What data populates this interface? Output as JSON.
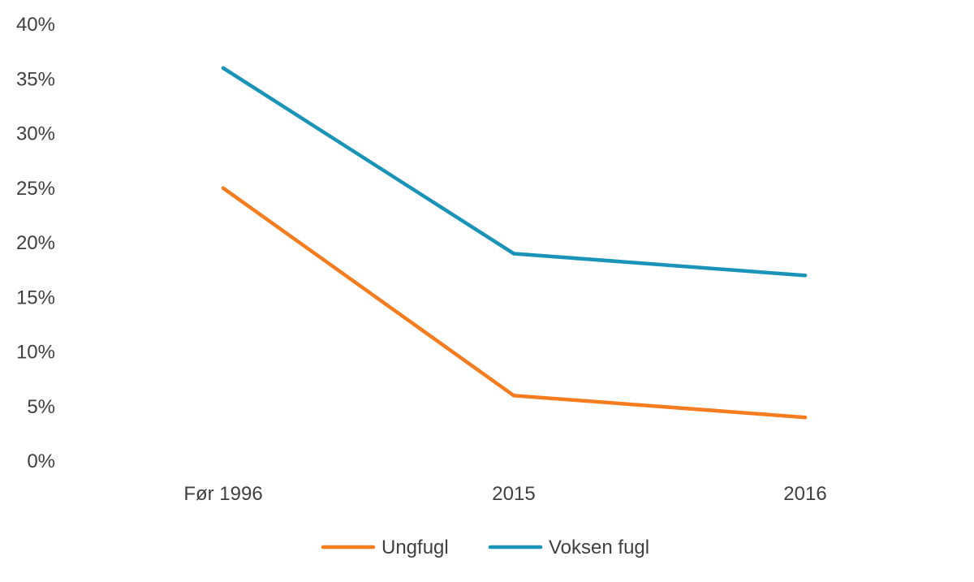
{
  "chart_data": {
    "type": "line",
    "categories": [
      "Før 1996",
      "2015",
      "2016"
    ],
    "series": [
      {
        "name": "Ungfugl",
        "values": [
          25,
          6,
          4
        ],
        "color": "#F57C1F"
      },
      {
        "name": "Voksen fugl",
        "values": [
          36,
          19,
          17
        ],
        "color": "#1A93B8"
      }
    ],
    "ylim": [
      0,
      40
    ],
    "yticks": [
      0,
      5,
      10,
      15,
      20,
      25,
      30,
      35,
      40
    ],
    "ytick_labels": [
      "0%",
      "5%",
      "10%",
      "15%",
      "20%",
      "25%",
      "30%",
      "35%",
      "40%"
    ],
    "grid": false,
    "legend_position": "bottom"
  }
}
